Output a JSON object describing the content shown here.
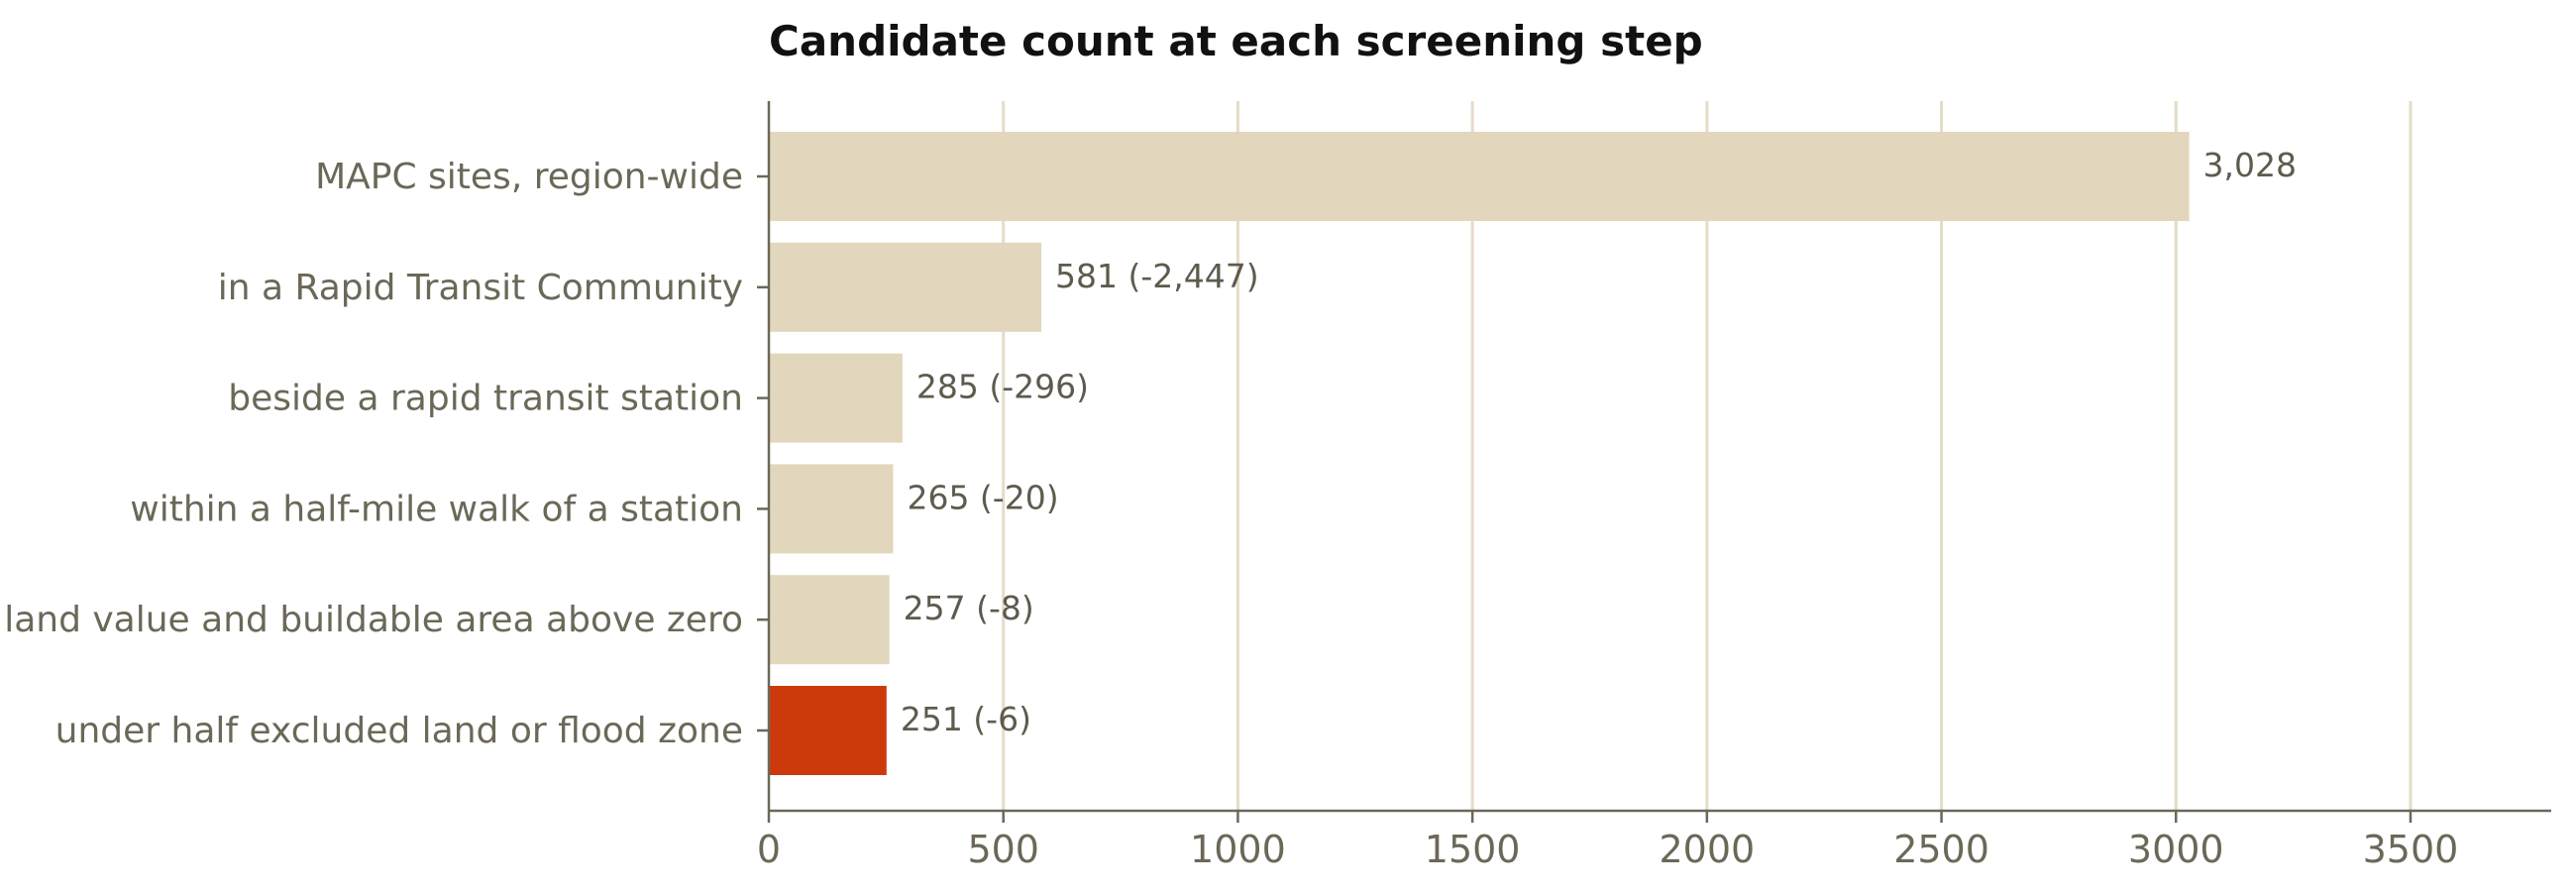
{
  "chart_data": {
    "type": "bar",
    "orientation": "horizontal",
    "title": "Candidate count at each screening step",
    "xlabel": "",
    "ylabel": "",
    "xlim": [
      0,
      3800
    ],
    "xticks": [
      0,
      500,
      1000,
      1500,
      2000,
      2500,
      3000,
      3500
    ],
    "grid": "vertical",
    "legend": "none",
    "categories": [
      "MAPC sites, region-wide",
      "in a Rapid Transit Community",
      "beside a rapid transit station",
      "within a half-mile walk of a station",
      "land value and buildable area above zero",
      "under half excluded land or flood zone"
    ],
    "values": [
      3028,
      581,
      285,
      265,
      257,
      251
    ],
    "data_labels": [
      "3,028",
      "581 (-2,447)",
      "285 (-296)",
      "265 (-20)",
      "257 (-8)",
      "251 (-6)"
    ],
    "colors": {
      "bar": "#e2d7bc",
      "highlight": "#cc3a0c",
      "grid": "#e5dcc8",
      "axis": "#6b6858",
      "text": "#6b6858",
      "title": "#111111"
    },
    "highlight_index": 5
  }
}
